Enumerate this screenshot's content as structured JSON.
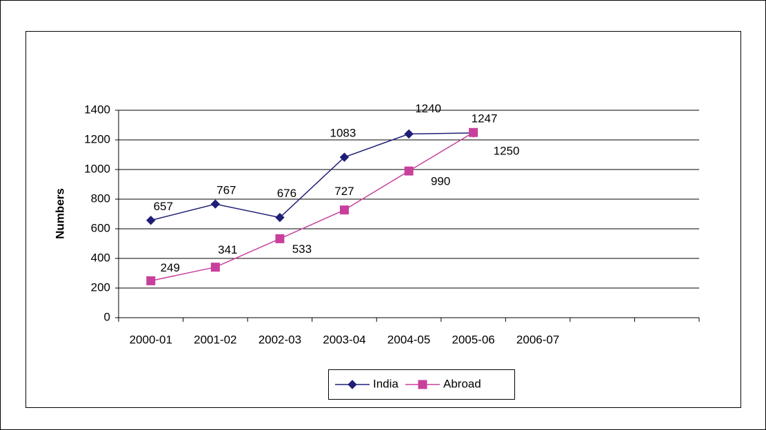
{
  "chart_data": {
    "type": "line",
    "y_label": "Numbers",
    "categories": [
      "2000-01",
      "2001-02",
      "2002-03",
      "2003-04",
      "2004-05",
      "2005-06",
      "2006-07",
      null,
      null
    ],
    "series": [
      {
        "name": "India",
        "color": "#1f1f78",
        "marker": "diamond",
        "values": [
          657,
          767,
          676,
          1083,
          1240,
          1247,
          null,
          null,
          null
        ]
      },
      {
        "name": "Abroad",
        "color": "#c8409c",
        "marker": "square",
        "values": [
          249,
          341,
          533,
          727,
          990,
          1250,
          null,
          null,
          null
        ]
      }
    ],
    "ylim": [
      0,
      1400
    ],
    "yticks": [
      0,
      200,
      400,
      600,
      800,
      1000,
      1200,
      1400
    ],
    "grid": true,
    "legend": "bottom"
  }
}
